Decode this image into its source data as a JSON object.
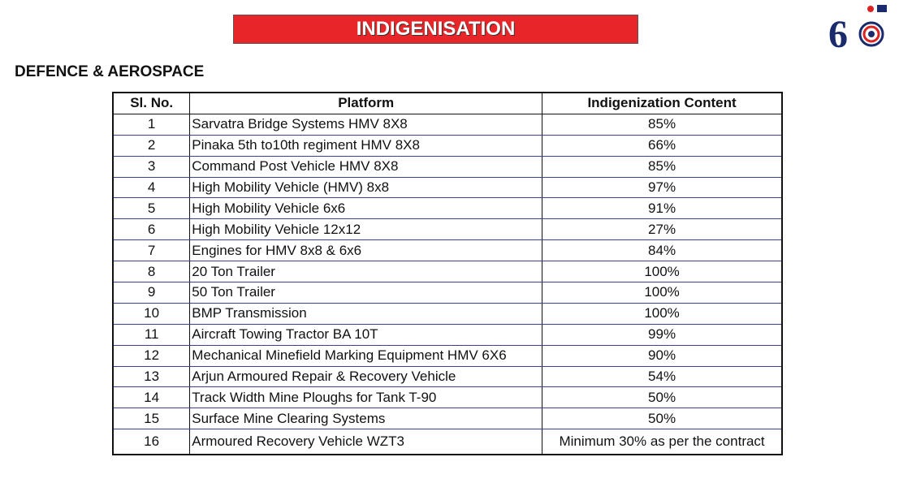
{
  "header": {
    "title": "INDIGENISATION",
    "subtitle": "DEFENCE & AEROSPACE"
  },
  "table": {
    "columns": [
      "Sl. No.",
      "Platform",
      "Indigenization Content"
    ],
    "rows": [
      [
        "1",
        "Sarvatra Bridge Systems HMV 8X8",
        "85%"
      ],
      [
        "2",
        "Pinaka 5th to10th regiment HMV 8X8",
        "66%"
      ],
      [
        "3",
        "Command Post Vehicle HMV 8X8",
        "85%"
      ],
      [
        "4",
        "High Mobility Vehicle (HMV) 8x8",
        "97%"
      ],
      [
        "5",
        "High Mobility Vehicle 6x6",
        "91%"
      ],
      [
        "6",
        "High Mobility Vehicle 12x12",
        "27%"
      ],
      [
        "7",
        "Engines for HMV 8x8 & 6x6",
        "84%"
      ],
      [
        "8",
        "20 Ton Trailer",
        "100%"
      ],
      [
        "9",
        "50 Ton Trailer",
        "100%"
      ],
      [
        "10",
        "BMP Transmission",
        "100%"
      ],
      [
        "11",
        "Aircraft Towing Tractor BA 10T",
        "99%"
      ],
      [
        "12",
        "Mechanical Minefield Marking Equipment HMV 6X6",
        "90%"
      ],
      [
        "13",
        "Arjun Armoured Repair & Recovery Vehicle",
        "54%"
      ],
      [
        "14",
        "Track Width Mine Ploughs for Tank T-90",
        "50%"
      ],
      [
        "15",
        "Surface Mine Clearing Systems",
        "50%"
      ],
      [
        "16",
        "Armoured Recovery Vehicle WZT3",
        "Minimum 30% as per the contract"
      ]
    ]
  }
}
